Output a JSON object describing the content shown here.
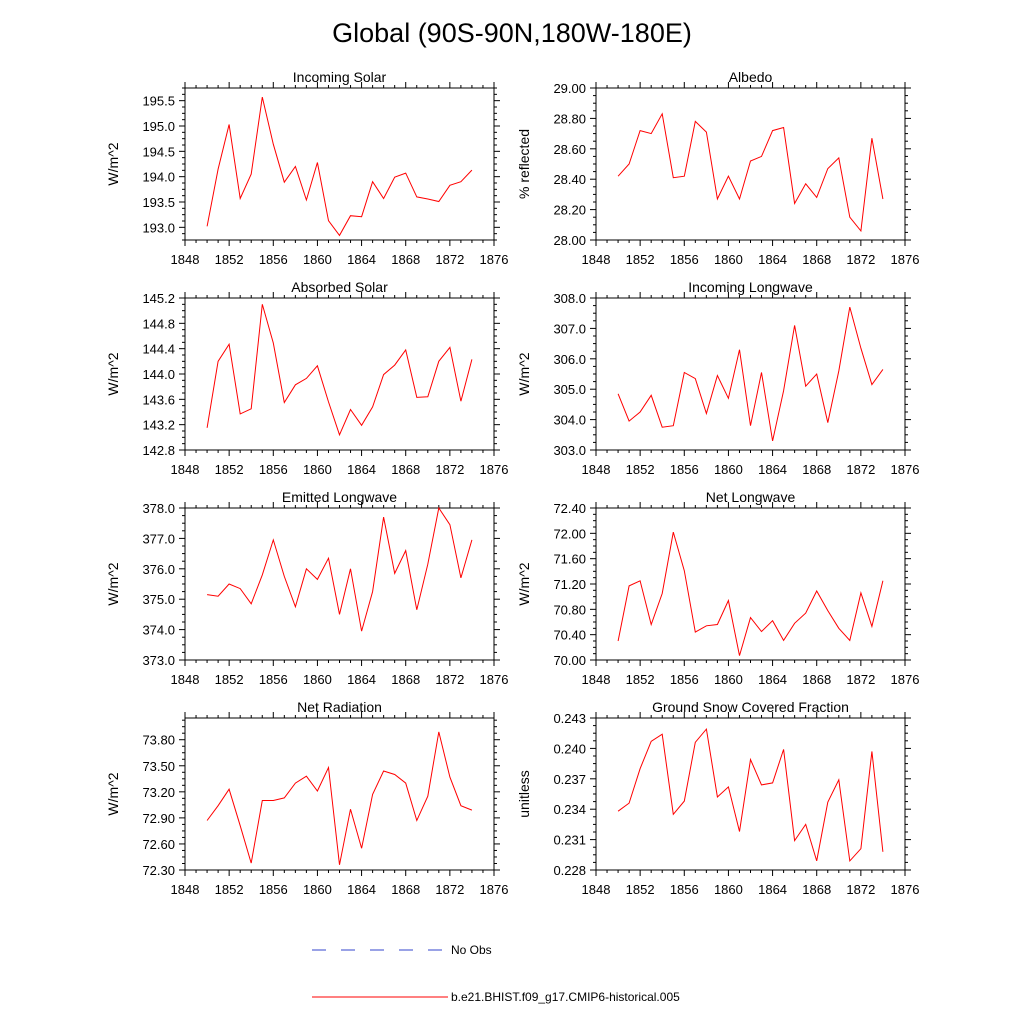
{
  "figure": {
    "title": "Global (90S-90N,180W-180E)"
  },
  "colors": {
    "model_line": "#ff0000",
    "obs_line": "#3344cc",
    "axis": "#000000"
  },
  "legend": {
    "items": [
      {
        "label": "No Obs",
        "style": "dashed",
        "color": "#3344cc"
      },
      {
        "label": "b.e21.BHIST.f09_g17.CMIP6-historical.005",
        "style": "solid",
        "color": "#ff0000"
      }
    ]
  },
  "chart_data": [
    {
      "type": "line",
      "title": "Incoming Solar",
      "xlabel": "",
      "ylabel": "W/m^2",
      "xlim": [
        1848,
        1876
      ],
      "ylim": [
        192.75,
        195.75
      ],
      "xticks": [
        "1848",
        "1852",
        "1856",
        "1860",
        "1864",
        "1868",
        "1872",
        "1876"
      ],
      "yticks": [
        "193.0",
        "193.5",
        "194.0",
        "194.5",
        "195.0",
        "195.5"
      ],
      "x": [
        1850,
        1851,
        1852,
        1853,
        1854,
        1855,
        1856,
        1857,
        1858,
        1859,
        1860,
        1861,
        1862,
        1863,
        1864,
        1865,
        1866,
        1867,
        1868,
        1869,
        1870,
        1871,
        1872,
        1873,
        1874
      ],
      "series": [
        {
          "name": "b.e21.BHIST.f09_g17.CMIP6-historical.005",
          "values": [
            193.02,
            194.15,
            195.03,
            193.57,
            194.05,
            195.57,
            194.64,
            193.89,
            194.2,
            193.54,
            194.28,
            193.13,
            192.84,
            193.23,
            193.21,
            193.9,
            193.57,
            193.99,
            194.07,
            193.6,
            193.56,
            193.51,
            193.83,
            193.9,
            194.13
          ]
        }
      ]
    },
    {
      "type": "line",
      "title": "Albedo",
      "xlabel": "",
      "ylabel": "% reflected",
      "xlim": [
        1848,
        1876
      ],
      "ylim": [
        28.0,
        29.0
      ],
      "xticks": [
        "1848",
        "1852",
        "1856",
        "1860",
        "1864",
        "1868",
        "1872",
        "1876"
      ],
      "yticks": [
        "28.00",
        "28.20",
        "28.40",
        "28.60",
        "28.80",
        "29.00"
      ],
      "x": [
        1850,
        1851,
        1852,
        1853,
        1854,
        1855,
        1856,
        1857,
        1858,
        1859,
        1860,
        1861,
        1862,
        1863,
        1864,
        1865,
        1866,
        1867,
        1868,
        1869,
        1870,
        1871,
        1872,
        1873,
        1874
      ],
      "series": [
        {
          "name": "b.e21.BHIST.f09_g17.CMIP6-historical.005",
          "values": [
            28.42,
            28.5,
            28.72,
            28.7,
            28.83,
            28.41,
            28.42,
            28.78,
            28.71,
            28.27,
            28.42,
            28.27,
            28.52,
            28.55,
            28.72,
            28.74,
            28.24,
            28.37,
            28.28,
            28.47,
            28.54,
            28.15,
            28.06,
            28.67,
            28.27
          ]
        }
      ]
    },
    {
      "type": "line",
      "title": "Absorbed Solar",
      "xlabel": "",
      "ylabel": "W/m^2",
      "xlim": [
        1848,
        1876
      ],
      "ylim": [
        142.8,
        145.2
      ],
      "xticks": [
        "1848",
        "1852",
        "1856",
        "1860",
        "1864",
        "1868",
        "1872",
        "1876"
      ],
      "yticks": [
        "142.8",
        "143.2",
        "143.6",
        "144.0",
        "144.4",
        "144.8",
        "145.2"
      ],
      "x": [
        1850,
        1851,
        1852,
        1853,
        1854,
        1855,
        1856,
        1857,
        1858,
        1859,
        1860,
        1861,
        1862,
        1863,
        1864,
        1865,
        1866,
        1867,
        1868,
        1869,
        1870,
        1871,
        1872,
        1873,
        1874
      ],
      "series": [
        {
          "name": "b.e21.BHIST.f09_g17.CMIP6-historical.005",
          "values": [
            143.15,
            144.2,
            144.47,
            143.37,
            143.45,
            145.1,
            144.49,
            143.55,
            143.83,
            143.93,
            144.13,
            143.56,
            143.04,
            143.44,
            143.19,
            143.48,
            143.99,
            144.14,
            144.38,
            143.63,
            143.64,
            144.2,
            144.42,
            143.57,
            144.23
          ]
        }
      ]
    },
    {
      "type": "line",
      "title": "Incoming Longwave",
      "xlabel": "",
      "ylabel": "W/m^2",
      "xlim": [
        1848,
        1876
      ],
      "ylim": [
        303.0,
        308.0
      ],
      "xticks": [
        "1848",
        "1852",
        "1856",
        "1860",
        "1864",
        "1868",
        "1872",
        "1876"
      ],
      "yticks": [
        "303.0",
        "304.0",
        "305.0",
        "306.0",
        "307.0",
        "308.0"
      ],
      "x": [
        1850,
        1851,
        1852,
        1853,
        1854,
        1855,
        1856,
        1857,
        1858,
        1859,
        1860,
        1861,
        1862,
        1863,
        1864,
        1865,
        1866,
        1867,
        1868,
        1869,
        1870,
        1871,
        1872,
        1873,
        1874
      ],
      "series": [
        {
          "name": "b.e21.BHIST.f09_g17.CMIP6-historical.005",
          "values": [
            304.85,
            303.95,
            304.25,
            304.8,
            303.75,
            303.8,
            305.55,
            305.35,
            304.2,
            305.45,
            304.7,
            306.3,
            303.8,
            305.55,
            303.3,
            304.95,
            307.1,
            305.1,
            305.5,
            303.9,
            305.6,
            307.7,
            306.35,
            305.15,
            305.65
          ]
        }
      ]
    },
    {
      "type": "line",
      "title": "Emitted Longwave",
      "xlabel": "",
      "ylabel": "W/m^2",
      "xlim": [
        1848,
        1876
      ],
      "ylim": [
        373.0,
        378.0
      ],
      "xticks": [
        "1848",
        "1852",
        "1856",
        "1860",
        "1864",
        "1868",
        "1872",
        "1876"
      ],
      "yticks": [
        "373.0",
        "374.0",
        "375.0",
        "376.0",
        "377.0",
        "378.0"
      ],
      "x": [
        1850,
        1851,
        1852,
        1853,
        1854,
        1855,
        1856,
        1857,
        1858,
        1859,
        1860,
        1861,
        1862,
        1863,
        1864,
        1865,
        1866,
        1867,
        1868,
        1869,
        1870,
        1871,
        1872,
        1873,
        1874
      ],
      "series": [
        {
          "name": "b.e21.BHIST.f09_g17.CMIP6-historical.005",
          "values": [
            375.15,
            375.1,
            375.5,
            375.35,
            374.85,
            375.8,
            376.95,
            375.75,
            374.75,
            376.0,
            375.65,
            376.35,
            374.5,
            376.0,
            373.95,
            375.25,
            377.7,
            375.85,
            376.6,
            374.65,
            376.15,
            378.0,
            377.45,
            375.7,
            376.95
          ]
        }
      ]
    },
    {
      "type": "line",
      "title": "Net Longwave",
      "xlabel": "",
      "ylabel": "W/m^2",
      "xlim": [
        1848,
        1876
      ],
      "ylim": [
        70.0,
        72.4
      ],
      "xticks": [
        "1848",
        "1852",
        "1856",
        "1860",
        "1864",
        "1868",
        "1872",
        "1876"
      ],
      "yticks": [
        "70.00",
        "70.40",
        "70.80",
        "71.20",
        "71.60",
        "72.00",
        "72.40"
      ],
      "x": [
        1850,
        1851,
        1852,
        1853,
        1854,
        1855,
        1856,
        1857,
        1858,
        1859,
        1860,
        1861,
        1862,
        1863,
        1864,
        1865,
        1866,
        1867,
        1868,
        1869,
        1870,
        1871,
        1872,
        1873,
        1874
      ],
      "series": [
        {
          "name": "b.e21.BHIST.f09_g17.CMIP6-historical.005",
          "values": [
            70.3,
            71.17,
            71.25,
            70.56,
            71.05,
            72.02,
            71.41,
            70.44,
            70.54,
            70.56,
            70.94,
            70.07,
            70.67,
            70.45,
            70.62,
            70.31,
            70.58,
            70.74,
            71.09,
            70.78,
            70.5,
            70.31,
            71.06,
            70.53,
            71.25
          ]
        }
      ]
    },
    {
      "type": "line",
      "title": "Net Radiation",
      "xlabel": "",
      "ylabel": "W/m^2",
      "xlim": [
        1848,
        1876
      ],
      "ylim": [
        72.3,
        74.05
      ],
      "xticks": [
        "1848",
        "1852",
        "1856",
        "1860",
        "1864",
        "1868",
        "1872",
        "1876"
      ],
      "yticks": [
        "72.30",
        "72.60",
        "72.90",
        "73.20",
        "73.50",
        "73.80"
      ],
      "x": [
        1850,
        1851,
        1852,
        1853,
        1854,
        1855,
        1856,
        1857,
        1858,
        1859,
        1860,
        1861,
        1862,
        1863,
        1864,
        1865,
        1866,
        1867,
        1868,
        1869,
        1870,
        1871,
        1872,
        1873,
        1874
      ],
      "series": [
        {
          "name": "b.e21.BHIST.f09_g17.CMIP6-historical.005",
          "values": [
            72.87,
            73.04,
            73.23,
            72.81,
            72.38,
            73.1,
            73.1,
            73.13,
            73.3,
            73.38,
            73.21,
            73.48,
            72.36,
            73.0,
            72.55,
            73.17,
            73.44,
            73.4,
            73.3,
            72.87,
            73.15,
            73.89,
            73.37,
            73.04,
            72.99
          ]
        }
      ]
    },
    {
      "type": "line",
      "title": "Ground Snow Covered Fraction",
      "xlabel": "",
      "ylabel": "unitless",
      "xlim": [
        1848,
        1876
      ],
      "ylim": [
        0.228,
        0.243
      ],
      "xticks": [
        "1848",
        "1852",
        "1856",
        "1860",
        "1864",
        "1868",
        "1872",
        "1876"
      ],
      "yticks": [
        "0.228",
        "0.231",
        "0.234",
        "0.237",
        "0.240",
        "0.243"
      ],
      "x": [
        1850,
        1851,
        1852,
        1853,
        1854,
        1855,
        1856,
        1857,
        1858,
        1859,
        1860,
        1861,
        1862,
        1863,
        1864,
        1865,
        1866,
        1867,
        1868,
        1869,
        1870,
        1871,
        1872,
        1873,
        1874
      ],
      "series": [
        {
          "name": "b.e21.BHIST.f09_g17.CMIP6-historical.005",
          "values": [
            0.2338,
            0.2346,
            0.238,
            0.2407,
            0.2414,
            0.2335,
            0.2348,
            0.2406,
            0.2419,
            0.2352,
            0.2362,
            0.2318,
            0.2389,
            0.2364,
            0.2366,
            0.2399,
            0.2309,
            0.2325,
            0.2289,
            0.2347,
            0.2369,
            0.2289,
            0.2301,
            0.2397,
            0.2298
          ]
        }
      ]
    }
  ]
}
